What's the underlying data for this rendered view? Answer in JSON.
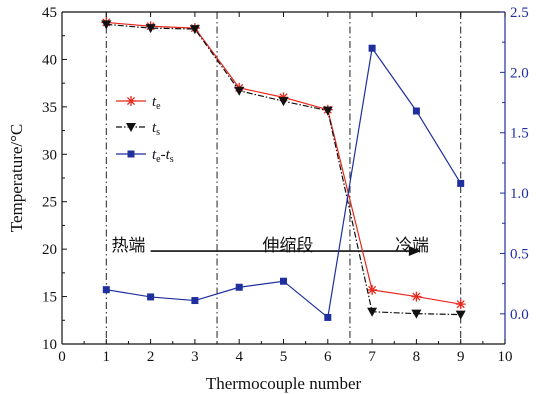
{
  "chart_data": {
    "type": "line",
    "xlabel": "Thermocouple number",
    "ylabel": "Temperature/°C",
    "xlim": [
      0,
      10
    ],
    "ylim": [
      10,
      45
    ],
    "y2lim": [
      -0.25,
      2.5
    ],
    "xticks": [
      "0",
      "1",
      "2",
      "3",
      "4",
      "5",
      "6",
      "7",
      "8",
      "9",
      "10"
    ],
    "yticks": [
      "10",
      "15",
      "20",
      "25",
      "30",
      "35",
      "40",
      "45"
    ],
    "y2ticks": [
      "0.0",
      "0.5",
      "1.0",
      "1.5",
      "2.0",
      "2.5"
    ],
    "grid": false,
    "legend_position": "upper-left",
    "colors": {
      "te": "#e8291f",
      "ts": "#111111",
      "diff": "#1f2f9e"
    },
    "series": [
      {
        "key": "te",
        "name_main": "t",
        "name_sub": "e",
        "axis": "left",
        "marker": "star",
        "x": [
          1,
          2,
          3,
          4,
          5,
          6,
          7,
          8,
          9
        ],
        "y": [
          43.9,
          43.5,
          43.3,
          37.0,
          36.0,
          34.7,
          15.7,
          15.0,
          14.2
        ]
      },
      {
        "key": "ts",
        "name_main": "t",
        "name_sub": "s",
        "axis": "left",
        "marker": "triangle-down",
        "x": [
          1,
          2,
          3,
          4,
          5,
          6,
          7,
          8,
          9
        ],
        "y": [
          43.7,
          43.3,
          43.2,
          36.7,
          35.6,
          34.6,
          13.4,
          13.2,
          13.1
        ]
      },
      {
        "key": "diff",
        "name_main": "t",
        "name_sub": "e",
        "name_sep": "-t",
        "name_sub2": "s",
        "axis": "right",
        "marker": "square",
        "x": [
          1,
          2,
          3,
          4,
          5,
          6,
          7,
          8,
          9
        ],
        "y": [
          0.2,
          0.14,
          0.11,
          0.22,
          0.27,
          -0.03,
          2.2,
          1.68,
          1.08
        ]
      }
    ],
    "vlines": [
      1,
      3.5,
      6.5,
      9
    ],
    "regions": [
      {
        "label": "热端",
        "x": 1.5
      },
      {
        "label": "伸缩段",
        "x": 5.1
      },
      {
        "label": "冷端",
        "x": 7.9
      }
    ],
    "arrow": {
      "from": [
        2,
        19.8
      ],
      "to": [
        8.1,
        19.8
      ]
    }
  }
}
